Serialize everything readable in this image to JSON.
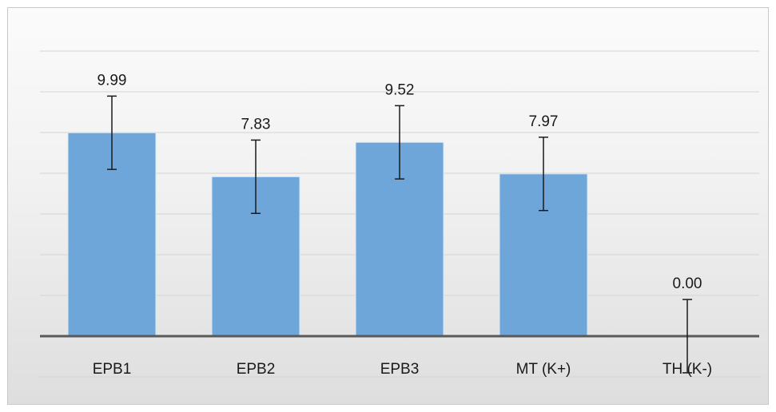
{
  "chart_data": {
    "type": "bar",
    "categories": [
      "EPB1",
      "EPB2",
      "EPB3",
      "MT (K+)",
      "TH (K-)"
    ],
    "values": [
      9.99,
      7.83,
      9.52,
      7.97,
      0.0
    ],
    "error_low": [
      1.8,
      1.8,
      1.8,
      1.8,
      1.8
    ],
    "error_high": [
      1.8,
      1.8,
      1.8,
      1.8,
      1.8
    ],
    "data_labels": [
      "9.99",
      "7.83",
      "9.52",
      "7.97",
      "0.00"
    ],
    "title": "",
    "xlabel": "",
    "ylabel": "",
    "ylim": [
      -2,
      14
    ],
    "grid": true,
    "legend": "none",
    "colors": {
      "bar": "#6fa6da",
      "bar_edge": "#dbe8f5",
      "gridline": "#d4d4d4",
      "axis": "#595959",
      "error_bar": "#1a1a1a",
      "text": "#1a1a1a"
    }
  }
}
